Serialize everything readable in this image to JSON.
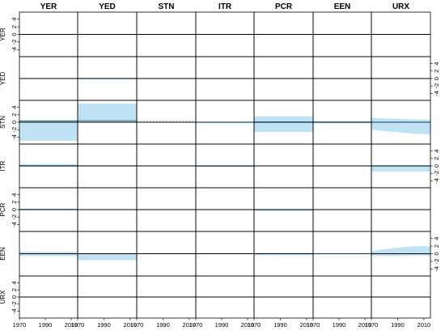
{
  "chart_data": {
    "type": "line",
    "variables": [
      "YER",
      "YED",
      "STN",
      "ITR",
      "PCR",
      "EEN",
      "URX"
    ],
    "column_titles": [
      "YER",
      "YED",
      "STN",
      "ITR",
      "PCR",
      "EEN",
      "URX"
    ],
    "row_labels": [
      "YER",
      "YED",
      "STN",
      "ITR",
      "PCR",
      "EEN",
      "URX"
    ],
    "x_ticks": [
      {
        "col": 0,
        "labels": [
          "1970",
          "1990",
          "2010"
        ]
      },
      {
        "col": 1,
        "labels": [
          "1970",
          "1990",
          "2010"
        ]
      },
      {
        "col": 2,
        "labels": [
          "1970",
          "1990",
          "2010"
        ]
      },
      {
        "col": 3,
        "labels": [
          "1970",
          "1990",
          "2010"
        ]
      },
      {
        "col": 4,
        "labels": [
          "1970",
          "1990",
          "2010"
        ]
      },
      {
        "col": 5,
        "labels": [
          "1970",
          "1990",
          "2010"
        ]
      },
      {
        "col": 6,
        "labels": [
          "1970",
          "1990",
          "2010"
        ]
      }
    ],
    "x_range": [
      1970,
      2015
    ],
    "y_ticks": [
      "4",
      "2",
      "0",
      "-2",
      "-4"
    ],
    "y_range": [
      -5,
      5
    ],
    "y_axis_side_by_row": [
      "left",
      "right",
      "left",
      "right",
      "left",
      "right",
      "left"
    ],
    "bands": [
      {
        "row": 2,
        "col": 0,
        "x": [
          1970,
          2015
        ],
        "lower": [
          -5,
          -5
        ],
        "upper": [
          0.6,
          0.6
        ]
      },
      {
        "row": 1,
        "col": 1,
        "x": [
          1970,
          2015
        ],
        "lower": [
          -0.2,
          -0.2
        ],
        "upper": [
          0.2,
          0.2
        ]
      },
      {
        "row": 2,
        "col": 1,
        "x": [
          1970,
          2015
        ],
        "lower": [
          0,
          0
        ],
        "upper": [
          5,
          5
        ]
      },
      {
        "row": 5,
        "col": 1,
        "x": [
          1970,
          2015
        ],
        "lower": [
          -1.7,
          -1.7
        ],
        "upper": [
          0,
          0
        ]
      },
      {
        "row": 2,
        "col": 4,
        "x": [
          1970,
          2015
        ],
        "lower": [
          -2.6,
          -2.6
        ],
        "upper": [
          1.6,
          1.6
        ]
      },
      {
        "row": 2,
        "col": 5,
        "x": [
          1970,
          2015
        ],
        "lower": [
          -0.3,
          -0.3
        ],
        "upper": [
          0.3,
          0.3
        ]
      },
      {
        "row": 2,
        "col": 6,
        "x": [
          1970,
          1980,
          1990,
          2000,
          2010,
          2015
        ],
        "lower": [
          -2.0,
          -2.4,
          -2.7,
          -3.0,
          -3.2,
          -3.4
        ],
        "upper": [
          1.2,
          1.0,
          0.9,
          0.8,
          0.7,
          0.7
        ]
      },
      {
        "row": 3,
        "col": 6,
        "x": [
          1970,
          2015
        ],
        "lower": [
          -1.5,
          -1.5
        ],
        "upper": [
          0.2,
          0.2
        ]
      },
      {
        "row": 5,
        "col": 0,
        "x": [
          1970,
          2015
        ],
        "lower": [
          -0.6,
          -0.6
        ],
        "upper": [
          0.5,
          0.5
        ]
      },
      {
        "row": 5,
        "col": 6,
        "x": [
          1970,
          1980,
          1990,
          2000,
          2010,
          2015
        ],
        "lower": [
          -0.5,
          -0.6,
          -0.6,
          -0.5,
          -0.5,
          -0.5
        ],
        "upper": [
          0.6,
          1.2,
          1.6,
          1.9,
          2.0,
          1.8
        ]
      },
      {
        "row": 4,
        "col": 4,
        "x": [
          1970,
          2015
        ],
        "lower": [
          -0.3,
          -0.3
        ],
        "upper": [
          0.1,
          0.1
        ]
      },
      {
        "row": 3,
        "col": 0,
        "x": [
          1970,
          2015
        ],
        "lower": [
          -0.2,
          -0.2
        ],
        "upper": [
          0.4,
          0.4
        ]
      },
      {
        "row": 3,
        "col": 1,
        "x": [
          1970,
          2015
        ],
        "lower": [
          -0.1,
          -0.1
        ],
        "upper": [
          0.2,
          0.2
        ]
      },
      {
        "row": 2,
        "col": 3,
        "x": [
          1970,
          2015
        ],
        "lower": [
          -0.3,
          -0.3
        ],
        "upper": [
          0.2,
          0.2
        ]
      },
      {
        "row": 5,
        "col": 4,
        "x": [
          1970,
          2015
        ],
        "lower": [
          -0.4,
          -0.4
        ],
        "upper": [
          0.2,
          0.2
        ]
      },
      {
        "row": 5,
        "col": 5,
        "x": [
          1970,
          2015
        ],
        "lower": [
          -0.2,
          -0.2
        ],
        "upper": [
          0.1,
          0.1
        ]
      },
      {
        "row": 0,
        "col": 1,
        "x": [
          1970,
          2015
        ],
        "lower": [
          -0.1,
          -0.1
        ],
        "upper": [
          0.1,
          0.1
        ]
      }
    ],
    "mean_lines": [
      {
        "row": 2,
        "col": 0,
        "value": 0.3
      },
      {
        "row": 2,
        "col": 1,
        "value": 0.4
      },
      {
        "row": 2,
        "col": 3,
        "value": 0
      },
      {
        "row": 3,
        "col": 0,
        "value": 0.1
      },
      {
        "row": 3,
        "col": 3,
        "value": -0.1
      },
      {
        "row": 4,
        "col": 0,
        "value": 0.1
      },
      {
        "row": 2,
        "col": 4,
        "value": 0.1
      },
      {
        "row": 4,
        "col": 4,
        "value": -0.1
      },
      {
        "row": 5,
        "col": 5,
        "value": 0
      },
      {
        "row": 2,
        "col": 6,
        "value": 0
      }
    ],
    "dashed_lines": [
      {
        "row": 2,
        "col": 2,
        "value": 0
      }
    ],
    "colors": {
      "band": "#bfe3f5",
      "mean": "#1f4e79",
      "zero": "#000000"
    }
  }
}
